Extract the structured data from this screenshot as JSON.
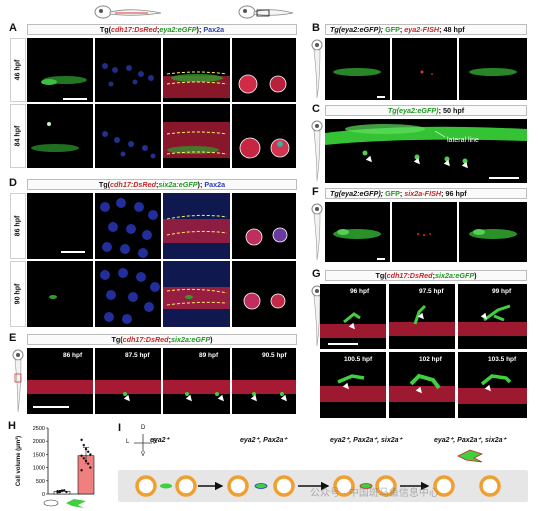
{
  "panel_A": {
    "letter": "A",
    "title_parts": [
      "Tg(",
      "cdh17:DsRed",
      ";",
      "eya2:eGFP",
      "); ",
      "Pax2a"
    ],
    "rows": [
      "46 hpf",
      "84 hpf"
    ]
  },
  "panel_B": {
    "letter": "B",
    "title_parts": [
      "Tg(eya2:eGFP); ",
      "GFP",
      "; ",
      "eya2-FISH",
      "; 48 hpf"
    ]
  },
  "panel_C": {
    "letter": "C",
    "title_parts": [
      "Tg(eya2:eGFP)",
      "; 50 hpf"
    ],
    "annotation": "lateral line"
  },
  "panel_D": {
    "letter": "D",
    "title_parts": [
      "Tg(",
      "cdh17:DsRed",
      ";",
      "six2a:eGFP",
      "); ",
      "Pax2a"
    ],
    "rows": [
      "86 hpf",
      "90 hpf"
    ]
  },
  "panel_E": {
    "letter": "E",
    "title_parts": [
      "Tg(",
      "cdh17:DsRed",
      ";",
      "six2a:eGFP",
      ")"
    ],
    "timepoints": [
      "86 hpf",
      "87.5 hpf",
      "89 hpf",
      "90.5 hpf"
    ]
  },
  "panel_F": {
    "letter": "F",
    "title_parts": [
      "Tg(eya2:eGFP); ",
      "GFP",
      "; ",
      "six2a-FISH",
      "; 96 hpf"
    ]
  },
  "panel_G": {
    "letter": "G",
    "title_parts": [
      "Tg(",
      "cdh17:DsRed",
      ";",
      "six2a:eGFP",
      ")"
    ],
    "timepoints": [
      "96 hpf",
      "97.5 hpf",
      "99 hpf",
      "100.5 hpf",
      "102 hpf",
      "103.5 hpf"
    ]
  },
  "panel_H": {
    "letter": "H",
    "ylabel": "Cell volume (μm³)",
    "yticks": [
      "0",
      "500",
      "1000",
      "1500",
      "2000",
      "2500"
    ]
  },
  "panel_I": {
    "letter": "I",
    "axis_letters": {
      "D": "D",
      "V": "V",
      "L": "L",
      "R": "R"
    },
    "stages": [
      "eya2⁺",
      "eya2⁺, Pax2a⁺",
      "eya2⁺, Pax2a⁺, six2a⁺",
      "eya2⁺, Pax2a⁺, six2a⁺"
    ]
  },
  "watermark": "公众号 · 中国斑马鱼信息中心",
  "chart_data": {
    "type": "bar",
    "title": "",
    "xlabel": "",
    "ylabel": "Cell volume (μm³)",
    "ylim": [
      0,
      2500
    ],
    "categories": [
      "",
      ""
    ],
    "values": [
      100,
      1450
    ],
    "colors": [
      "#ffffff",
      "#f08080"
    ],
    "points": [
      [
        60,
        90,
        120,
        140,
        80,
        110,
        70,
        130
      ],
      [
        2050,
        1850,
        1700,
        1600,
        1500,
        1450,
        1350,
        1250,
        1150,
        1000,
        900
      ]
    ]
  }
}
